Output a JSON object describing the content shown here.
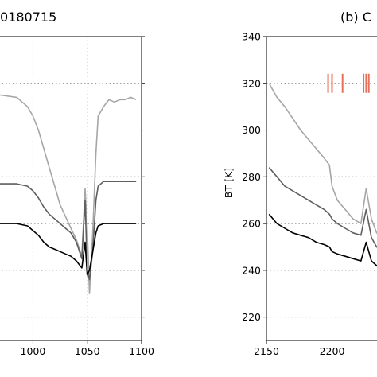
{
  "chart_data": [
    {
      "type": "line",
      "title": "0180715",
      "xlabel": "",
      "ylabel": "",
      "x_ticks": [
        1000,
        1050,
        1100
      ],
      "xlim": [
        955,
        1100
      ],
      "ylim": [
        210,
        340
      ],
      "grid": true,
      "series": [
        {
          "color": "#a6a6a6",
          "x": [
            955,
            970,
            985,
            995,
            1000,
            1005,
            1010,
            1015,
            1020,
            1025,
            1030,
            1035,
            1040,
            1045,
            1048,
            1050,
            1052,
            1055,
            1058,
            1060,
            1065,
            1070,
            1075,
            1080,
            1085,
            1090,
            1095
          ],
          "y": [
            316,
            315,
            314,
            310,
            306,
            300,
            292,
            284,
            276,
            268,
            263,
            258,
            253,
            246,
            275,
            258,
            230,
            256,
            290,
            306,
            310,
            313,
            312,
            313,
            313,
            314,
            313
          ]
        },
        {
          "color": "#5f5f5f",
          "x": [
            955,
            970,
            985,
            995,
            1000,
            1005,
            1010,
            1015,
            1020,
            1025,
            1030,
            1035,
            1040,
            1045,
            1048,
            1050,
            1052,
            1055,
            1058,
            1060,
            1065,
            1070,
            1075,
            1080,
            1085,
            1090,
            1095
          ],
          "y": [
            278,
            277,
            277,
            276,
            274,
            271,
            267,
            264,
            262,
            260,
            258,
            256,
            252,
            245,
            270,
            240,
            236,
            248,
            270,
            276,
            278,
            278,
            278,
            278,
            278,
            278,
            278
          ]
        },
        {
          "color": "#000000",
          "x": [
            955,
            970,
            985,
            995,
            1000,
            1005,
            1010,
            1015,
            1020,
            1025,
            1030,
            1035,
            1040,
            1045,
            1048,
            1050,
            1052,
            1055,
            1058,
            1060,
            1065,
            1070,
            1075,
            1080,
            1085,
            1090,
            1095
          ],
          "y": [
            260,
            260,
            260,
            259,
            257,
            255,
            252,
            250,
            249,
            248,
            247,
            246,
            244,
            241,
            252,
            238,
            240,
            248,
            256,
            259,
            260,
            260,
            260,
            260,
            260,
            260,
            260
          ]
        }
      ]
    },
    {
      "type": "line",
      "title": "(b) C",
      "xlabel": "",
      "ylabel": "BT [K]",
      "x_ticks": [
        2150,
        2200
      ],
      "y_ticks": [
        220,
        240,
        260,
        280,
        300,
        320,
        340
      ],
      "xlim": [
        2150,
        2250
      ],
      "ylim": [
        210,
        340
      ],
      "grid": true,
      "markers": {
        "color": "#e8705a",
        "y": 320,
        "x": [
          2197,
          2200,
          2208,
          2224,
          2226,
          2228
        ]
      },
      "series": [
        {
          "color": "#a6a6a6",
          "x": [
            2152,
            2158,
            2164,
            2170,
            2176,
            2182,
            2188,
            2194,
            2198,
            2200,
            2204,
            2210,
            2216,
            2222,
            2226,
            2230,
            2234,
            2238,
            2242
          ],
          "y": [
            320,
            314,
            310,
            305,
            300,
            296,
            292,
            288,
            285,
            276,
            270,
            266,
            262,
            260,
            275,
            262,
            256,
            254,
            252
          ]
        },
        {
          "color": "#5f5f5f",
          "x": [
            2152,
            2158,
            2164,
            2170,
            2176,
            2182,
            2188,
            2194,
            2198,
            2200,
            2204,
            2210,
            2216,
            2222,
            2226,
            2230,
            2234,
            2238,
            2242
          ],
          "y": [
            284,
            280,
            276,
            274,
            272,
            270,
            268,
            266,
            264,
            262,
            260,
            258,
            256,
            255,
            266,
            254,
            250,
            248,
            246
          ]
        },
        {
          "color": "#000000",
          "x": [
            2152,
            2158,
            2164,
            2170,
            2176,
            2182,
            2188,
            2194,
            2198,
            2200,
            2204,
            2210,
            2216,
            2222,
            2226,
            2230,
            2234,
            2238,
            2242
          ],
          "y": [
            264,
            260,
            258,
            256,
            255,
            254,
            252,
            251,
            250,
            248,
            247,
            246,
            245,
            244,
            252,
            244,
            242,
            240,
            238
          ]
        }
      ]
    }
  ]
}
